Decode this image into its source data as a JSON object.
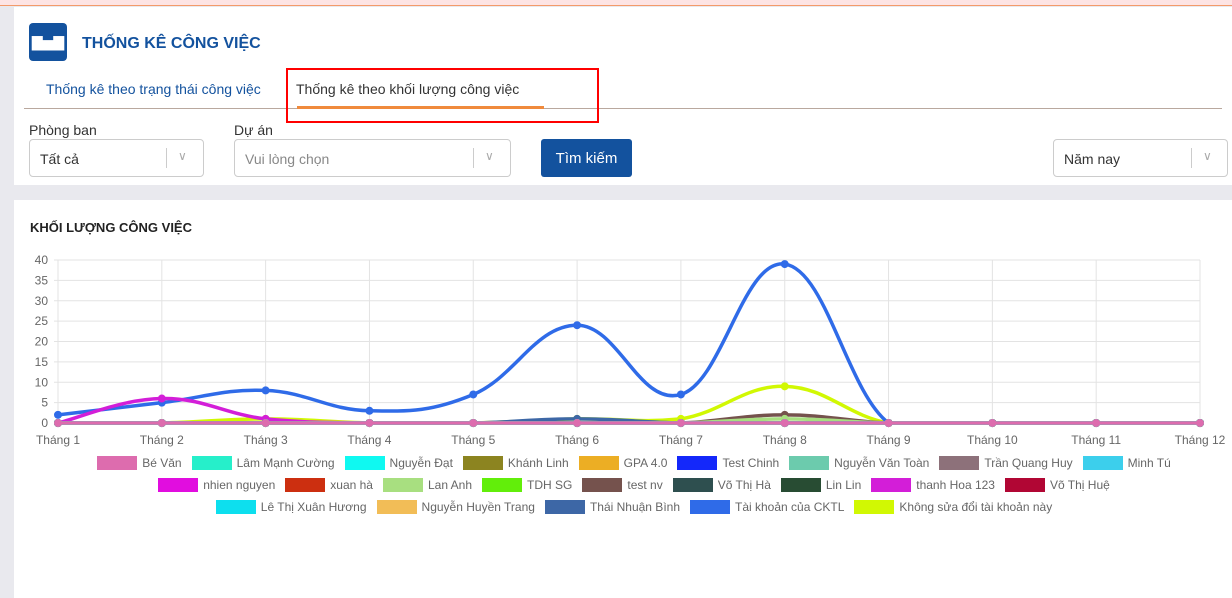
{
  "header": {
    "title": "THỐNG KÊ CÔNG VIỆC",
    "icon": "bar-chart-icon"
  },
  "tabs": [
    {
      "label": "Thống kê theo trạng thái công việc",
      "active": false
    },
    {
      "label": "Thống kê theo khối lượng công việc",
      "active": true
    }
  ],
  "filters": {
    "department": {
      "label": "Phòng ban",
      "value": "Tất cả"
    },
    "project": {
      "label": "Dự án",
      "placeholder": "Vui lòng chọn"
    },
    "search_button": "Tìm kiếm",
    "period": {
      "value": "Năm nay"
    }
  },
  "colors": {
    "primary": "#13529e",
    "accent": "#f08a3c",
    "highlight": "#ff0000"
  },
  "chart_data": {
    "type": "line",
    "title": "KHỐI LƯỢNG CÔNG VIỆC",
    "categories": [
      "Tháng 1",
      "Tháng 2",
      "Tháng 3",
      "Tháng 4",
      "Tháng 5",
      "Tháng 6",
      "Tháng 7",
      "Tháng 8",
      "Tháng 9",
      "Tháng 10",
      "Tháng 11",
      "Tháng 12"
    ],
    "ylim": [
      0,
      40
    ],
    "yticks": [
      0,
      5,
      10,
      15,
      20,
      25,
      30,
      35,
      40
    ],
    "grid": true,
    "legend": "bottom",
    "series": [
      {
        "name": "Bé Văn",
        "color": "#dd6cae",
        "values": [
          0,
          0,
          0,
          0,
          0,
          0,
          0,
          0,
          0,
          0,
          0,
          0
        ]
      },
      {
        "name": "Lâm Mạnh Cường",
        "color": "#26efca",
        "values": [
          0,
          0,
          0,
          0,
          0,
          0,
          0,
          0,
          0,
          0,
          0,
          0
        ]
      },
      {
        "name": "Nguyễn Đạt",
        "color": "#0ff9f1",
        "values": [
          0,
          0,
          0,
          0,
          0,
          0,
          0,
          0,
          0,
          0,
          0,
          0
        ]
      },
      {
        "name": "Khánh Linh",
        "color": "#8c8420",
        "values": [
          0,
          0,
          0,
          0,
          0,
          0,
          0,
          0,
          0,
          0,
          0,
          0
        ]
      },
      {
        "name": "GPA 4.0",
        "color": "#ecae24",
        "values": [
          0,
          0,
          0,
          0,
          0,
          0,
          0,
          0,
          0,
          0,
          0,
          0
        ]
      },
      {
        "name": "Test Chinh",
        "color": "#1428fa",
        "values": [
          0,
          0,
          0,
          0,
          0,
          0,
          0,
          0,
          0,
          0,
          0,
          0
        ]
      },
      {
        "name": "Nguyễn Văn Toàn",
        "color": "#6ccbad",
        "values": [
          0,
          0,
          0,
          0,
          0,
          0,
          0,
          0,
          0,
          0,
          0,
          0
        ]
      },
      {
        "name": "Trần Quang Huy",
        "color": "#8d717a",
        "values": [
          0,
          0,
          0,
          0,
          0,
          0,
          0,
          0,
          0,
          0,
          0,
          0
        ]
      },
      {
        "name": "Minh Tú",
        "color": "#3ccfec",
        "values": [
          0,
          0,
          0,
          0,
          0,
          0,
          0,
          0,
          0,
          0,
          0,
          0
        ]
      },
      {
        "name": "nhien nguyen",
        "color": "#e10ddf",
        "values": [
          0,
          0,
          0,
          0,
          0,
          0,
          0,
          0,
          0,
          0,
          0,
          0
        ]
      },
      {
        "name": "xuan hà",
        "color": "#cc2f10",
        "values": [
          0,
          0,
          0,
          0,
          0,
          0,
          0,
          0,
          0,
          0,
          0,
          0
        ]
      },
      {
        "name": "Lan Anh",
        "color": "#a8df80",
        "values": [
          0,
          0,
          0,
          0,
          0,
          0,
          0,
          1,
          0,
          0,
          0,
          0
        ]
      },
      {
        "name": "TDH SG",
        "color": "#62ee0a",
        "values": [
          0,
          0,
          0,
          0,
          0,
          0,
          0,
          0,
          0,
          0,
          0,
          0
        ]
      },
      {
        "name": "test nv",
        "color": "#75524d",
        "values": [
          0,
          0,
          0,
          0,
          0,
          0,
          0,
          2,
          0,
          0,
          0,
          0
        ]
      },
      {
        "name": "Võ Thị Hà",
        "color": "#2e4f4f",
        "values": [
          0,
          0,
          0,
          0,
          0,
          0,
          0,
          0,
          0,
          0,
          0,
          0
        ]
      },
      {
        "name": "Lin Lin",
        "color": "#284c33",
        "values": [
          0,
          0,
          0,
          0,
          0,
          0,
          0,
          0,
          0,
          0,
          0,
          0
        ]
      },
      {
        "name": "thanh Hoa 123",
        "color": "#d31ed8",
        "values": [
          0,
          6,
          1,
          0,
          0,
          0,
          0,
          0,
          0,
          0,
          0,
          0
        ]
      },
      {
        "name": "Võ Thị Huệ",
        "color": "#b10634",
        "values": [
          0,
          0,
          0,
          0,
          0,
          0,
          0,
          0,
          0,
          0,
          0,
          0
        ]
      },
      {
        "name": "Lê Thị Xuân Hương",
        "color": "#0ddfee",
        "values": [
          0,
          0,
          0,
          0,
          0,
          0,
          0,
          0,
          0,
          0,
          0,
          0
        ]
      },
      {
        "name": "Nguyễn Huyền Trang",
        "color": "#f2bd57",
        "values": [
          0,
          0,
          0,
          0,
          0,
          0,
          0,
          0,
          0,
          0,
          0,
          0
        ]
      },
      {
        "name": "Thái Nhuận Bình",
        "color": "#3d67a6",
        "values": [
          0,
          0,
          0,
          0,
          0,
          1,
          0,
          0,
          0,
          0,
          0,
          0
        ]
      },
      {
        "name": "Tài khoản của CKTL",
        "color": "#2f6be8",
        "values": [
          2,
          5,
          8,
          3,
          7,
          24,
          7,
          39,
          0,
          0,
          0,
          0
        ]
      },
      {
        "name": "Không sửa đổi tài khoản này",
        "color": "#d1f803",
        "values": [
          0,
          0,
          1,
          0,
          0,
          1,
          1,
          9,
          0,
          0,
          0,
          0
        ]
      }
    ]
  }
}
